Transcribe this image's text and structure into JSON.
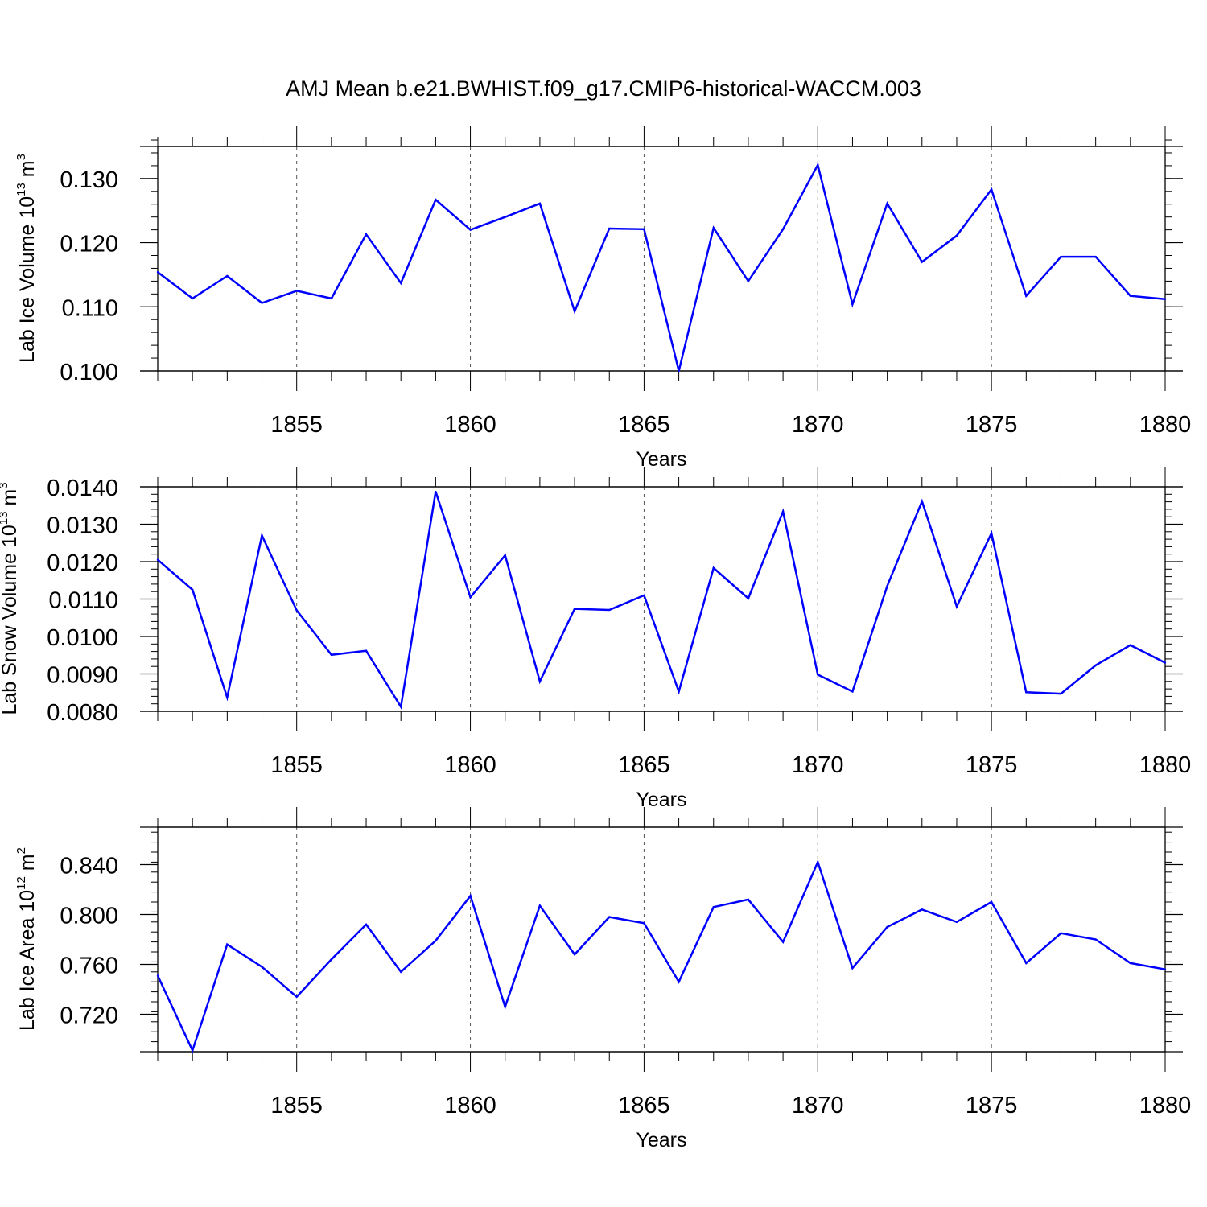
{
  "figure": {
    "title": "AMJ Mean b.e21.BWHIST.f09_g17.CMIP6-historical-WACCM.003"
  },
  "colors": {
    "line": "#0000ff",
    "axis": "#000000",
    "grid": "#555555"
  },
  "chart_data": [
    {
      "type": "line",
      "ylabel": "Lab Ice Volume 10",
      "ylabel_exp": "13",
      "ylabel_unit": "m",
      "ylabel_unit_exp": "3",
      "xlabel": "Years",
      "xlim": [
        1851,
        1880
      ],
      "ylim": [
        0.1,
        0.135
      ],
      "ytick_values": [
        0.1,
        0.11,
        0.12,
        0.13
      ],
      "ytick_labels": [
        "0.100",
        "0.110",
        "0.120",
        "0.130"
      ],
      "xtick_values": [
        1855,
        1860,
        1865,
        1870,
        1875,
        1880
      ],
      "xtick_labels": [
        "1855",
        "1860",
        "1865",
        "1870",
        "1875",
        "1880"
      ],
      "x": [
        1851,
        1852,
        1853,
        1854,
        1855,
        1856,
        1857,
        1858,
        1859,
        1860,
        1861,
        1862,
        1863,
        1864,
        1865,
        1866,
        1867,
        1868,
        1869,
        1870,
        1871,
        1872,
        1873,
        1874,
        1875,
        1876,
        1877,
        1878,
        1879,
        1880
      ],
      "values": [
        0.1154,
        0.1113,
        0.1148,
        0.1106,
        0.1125,
        0.1113,
        0.1213,
        0.1137,
        0.1267,
        0.122,
        0.124,
        0.1261,
        0.1093,
        0.1222,
        0.1221,
        0.1,
        0.1223,
        0.114,
        0.1221,
        0.1321,
        0.1104,
        0.1261,
        0.117,
        0.1211,
        0.1283,
        0.1117,
        0.1178,
        0.1178,
        0.1117,
        0.1112
      ]
    },
    {
      "type": "line",
      "ylabel": "Lab Snow Volume 10",
      "ylabel_exp": "13",
      "ylabel_unit": "m",
      "ylabel_unit_exp": "3",
      "xlabel": "Years",
      "xlim": [
        1851,
        1880
      ],
      "ylim": [
        0.008,
        0.014
      ],
      "ytick_values": [
        0.008,
        0.009,
        0.01,
        0.011,
        0.012,
        0.013,
        0.014
      ],
      "ytick_labels": [
        "0.0080",
        "0.0090",
        "0.0100",
        "0.0110",
        "0.0120",
        "0.0130",
        "0.0140"
      ],
      "xtick_values": [
        1855,
        1860,
        1865,
        1870,
        1875,
        1880
      ],
      "xtick_labels": [
        "1855",
        "1860",
        "1865",
        "1870",
        "1875",
        "1880"
      ],
      "x": [
        1851,
        1852,
        1853,
        1854,
        1855,
        1856,
        1857,
        1858,
        1859,
        1860,
        1861,
        1862,
        1863,
        1864,
        1865,
        1866,
        1867,
        1868,
        1869,
        1870,
        1871,
        1872,
        1873,
        1874,
        1875,
        1876,
        1877,
        1878,
        1879,
        1880
      ],
      "values": [
        0.01205,
        0.01125,
        0.00837,
        0.0127,
        0.0107,
        0.00951,
        0.00962,
        0.00812,
        0.01387,
        0.01105,
        0.01217,
        0.0088,
        0.01074,
        0.01071,
        0.0111,
        0.00853,
        0.01183,
        0.01102,
        0.01334,
        0.00898,
        0.00853,
        0.01135,
        0.01361,
        0.0108,
        0.01276,
        0.00851,
        0.00847,
        0.00923,
        0.00977,
        0.0093
      ]
    },
    {
      "type": "line",
      "ylabel": "Lab Ice Area 10",
      "ylabel_exp": "12",
      "ylabel_unit": "m",
      "ylabel_unit_exp": "2",
      "xlabel": "Years",
      "xlim": [
        1851,
        1880
      ],
      "ylim": [
        0.69,
        0.87
      ],
      "ytick_values": [
        0.72,
        0.76,
        0.8,
        0.84
      ],
      "ytick_labels": [
        "0.720",
        "0.760",
        "0.800",
        "0.840"
      ],
      "xtick_values": [
        1855,
        1860,
        1865,
        1870,
        1875,
        1880
      ],
      "xtick_labels": [
        "1855",
        "1860",
        "1865",
        "1870",
        "1875",
        "1880"
      ],
      "x": [
        1851,
        1852,
        1853,
        1854,
        1855,
        1856,
        1857,
        1858,
        1859,
        1860,
        1861,
        1862,
        1863,
        1864,
        1865,
        1866,
        1867,
        1868,
        1869,
        1870,
        1871,
        1872,
        1873,
        1874,
        1875,
        1876,
        1877,
        1878,
        1879,
        1880
      ],
      "values": [
        0.751,
        0.691,
        0.776,
        0.758,
        0.734,
        0.764,
        0.792,
        0.754,
        0.779,
        0.815,
        0.726,
        0.807,
        0.768,
        0.798,
        0.793,
        0.746,
        0.806,
        0.812,
        0.778,
        0.842,
        0.757,
        0.79,
        0.804,
        0.794,
        0.81,
        0.761,
        0.785,
        0.78,
        0.761,
        0.756
      ]
    }
  ]
}
